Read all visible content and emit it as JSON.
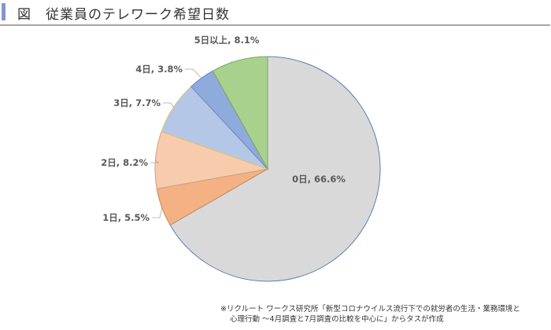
{
  "header": {
    "figure_label": "図",
    "title": "従業員のテレワーク希望日数"
  },
  "chart_data": {
    "type": "pie",
    "title": "従業員のテレワーク希望日数",
    "start_angle_deg": 0,
    "direction": "clockwise",
    "categories": [
      "0日",
      "1日",
      "2日",
      "3日",
      "4日",
      "5日以上"
    ],
    "values": [
      66.6,
      5.5,
      8.2,
      7.7,
      3.8,
      8.1
    ],
    "unit": "%",
    "labels": [
      "0日, 66.6%",
      "1日, 5.5%",
      "2日, 8.2%",
      "3日, 7.7%",
      "4日, 3.8%",
      "5日以上, 8.1%"
    ],
    "colors": [
      "#d9d9d9",
      "#f4b183",
      "#f8cbad",
      "#b4c7e7",
      "#8faadc",
      "#a9d18e"
    ],
    "edge_colors": [
      "#5b7fb5",
      "#c5895a",
      "#c9a48a",
      "#e0c070",
      "#6c88c0",
      "#7aa860"
    ],
    "legend": "none"
  },
  "source": {
    "line1": "※リクルート ワークス研究所「新型コロナウイルス流行下での就労者の生活・業務環境と",
    "line2": "心理行動 ～4月調査と7月調査の比較を中心に」からタスが作成"
  }
}
